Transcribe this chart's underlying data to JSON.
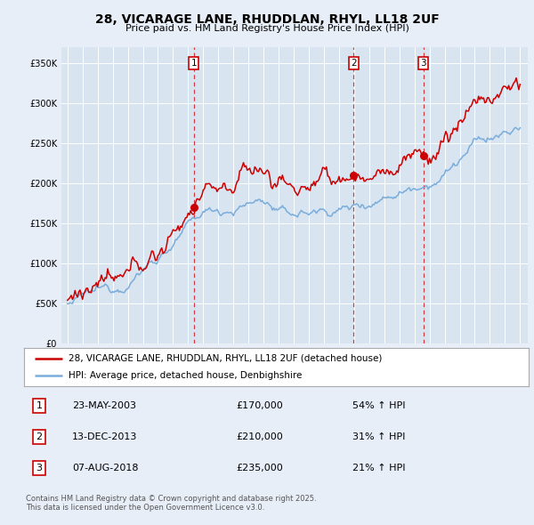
{
  "title": "28, VICARAGE LANE, RHUDDLAN, RHYL, LL18 2UF",
  "subtitle": "Price paid vs. HM Land Registry's House Price Index (HPI)",
  "ylim": [
    0,
    370000
  ],
  "yticks": [
    0,
    50000,
    100000,
    150000,
    200000,
    250000,
    300000,
    350000
  ],
  "page_bg": "#e8eef8",
  "plot_bg": "#d8e4f0",
  "sale_color": "#cc0000",
  "hpi_color": "#7aaddb",
  "legend_sale": "28, VICARAGE LANE, RHUDDLAN, RHYL, LL18 2UF (detached house)",
  "legend_hpi": "HPI: Average price, detached house, Denbighshire",
  "transactions": [
    {
      "num": 1,
      "date": "23-MAY-2003",
      "price": 170000,
      "hpi_pct": "54%",
      "direction": "↑"
    },
    {
      "num": 2,
      "date": "13-DEC-2013",
      "price": 210000,
      "hpi_pct": "31%",
      "direction": "↑"
    },
    {
      "num": 3,
      "date": "07-AUG-2018",
      "price": 235000,
      "hpi_pct": "21%",
      "direction": "↑"
    }
  ],
  "trans_dates": [
    2003.38,
    2013.96,
    2018.6
  ],
  "trans_prices": [
    170000,
    210000,
    235000
  ],
  "footer": "Contains HM Land Registry data © Crown copyright and database right 2025.\nThis data is licensed under the Open Government Licence v3.0."
}
